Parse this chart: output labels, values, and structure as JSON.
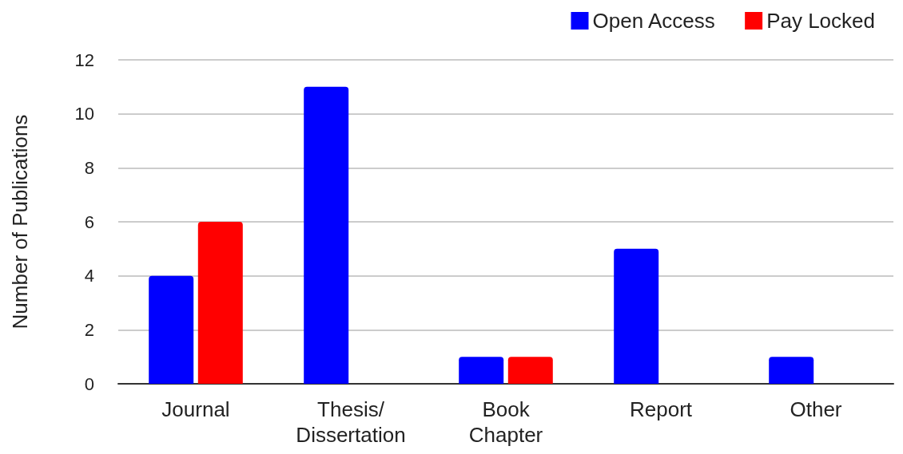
{
  "chart_data": {
    "type": "bar",
    "ylabel": "Number of Publications",
    "categories": [
      "Journal",
      "Thesis/Dissertation",
      "Book Chapter",
      "Report",
      "Other"
    ],
    "series": [
      {
        "name": "Open Access",
        "color": "#0000ff",
        "values": [
          4,
          11,
          1,
          5,
          1
        ]
      },
      {
        "name": "Pay Locked",
        "color": "#ff0000",
        "values": [
          6,
          null,
          1,
          null,
          null
        ]
      }
    ],
    "ylim": [
      0,
      12
    ],
    "yticks": [
      0,
      2,
      4,
      6,
      8,
      10,
      12
    ],
    "grid": "y",
    "legend": "top right"
  }
}
